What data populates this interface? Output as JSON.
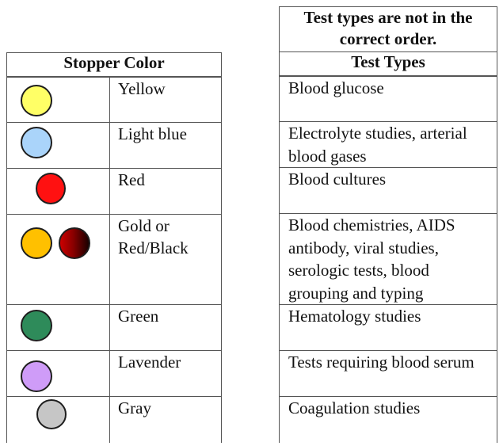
{
  "stopper_table": {
    "header": "Stopper Color",
    "rows": [
      {
        "name": "Yellow",
        "swatches": [
          "#ffff66"
        ]
      },
      {
        "name": "Light blue",
        "swatches": [
          "#aad4fa"
        ]
      },
      {
        "name": "Red",
        "swatches": [
          "#ff1111"
        ]
      },
      {
        "name": "Gold or Red/Black",
        "name_line1": "Gold or",
        "name_line2": "Red/Black",
        "swatches": [
          "#ffc000",
          "gradient-red-black"
        ]
      },
      {
        "name": "Green",
        "swatches": [
          "#2e8b5a"
        ]
      },
      {
        "name": "Lavender",
        "swatches": [
          "#cf9cf8"
        ]
      },
      {
        "name": "Gray",
        "swatches": [
          "#c6c6c6"
        ]
      }
    ]
  },
  "test_table": {
    "note": "Test types are not in the correct order.",
    "header": "Test Types",
    "rows": [
      "Blood glucose",
      "Electrolyte studies, arterial blood gases",
      "Blood cultures",
      "Blood chemistries, AIDS antibody, viral studies, serologic tests, blood grouping and typing",
      "Hematology studies",
      "Tests requiring blood serum",
      "Coagulation studies"
    ]
  }
}
